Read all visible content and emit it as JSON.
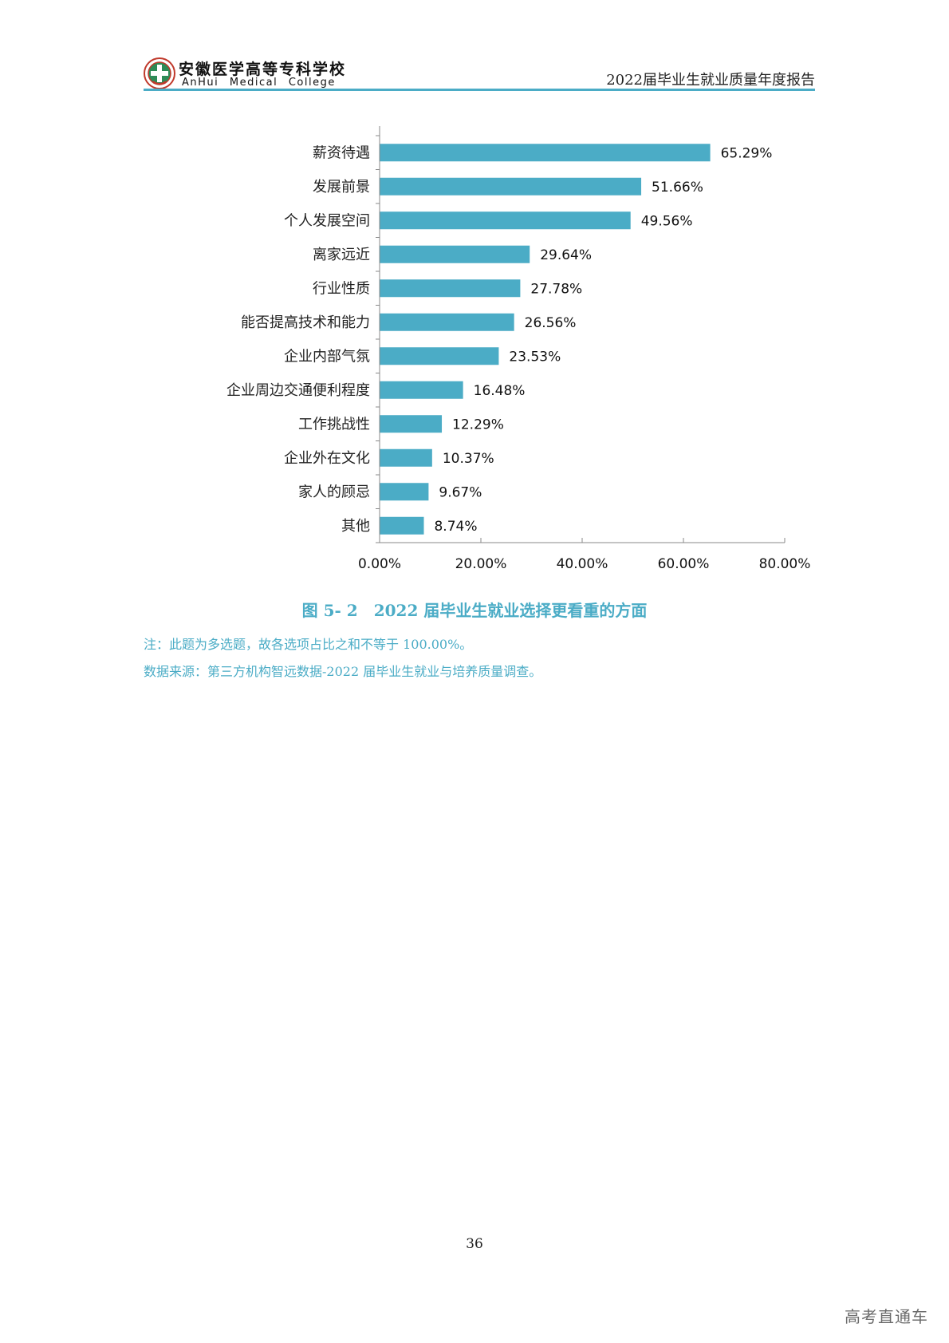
{
  "header": {
    "school_name_cn": "安徽医学高等专科学校",
    "school_name_en": "AnHui Medical College",
    "report_title": "2022届毕业生就业质量年度报告"
  },
  "chart_data": {
    "type": "bar",
    "orientation": "horizontal",
    "categories": [
      "薪资待遇",
      "发展前景",
      "个人发展空间",
      "离家远近",
      "行业性质",
      "能否提高技术和能力",
      "企业内部气氛",
      "企业周边交通便利程度",
      "工作挑战性",
      "企业外在文化",
      "家人的顾忌",
      "其他"
    ],
    "values": [
      65.29,
      51.66,
      49.56,
      29.64,
      27.78,
      26.56,
      23.53,
      16.48,
      12.29,
      10.37,
      9.67,
      8.74
    ],
    "value_labels": [
      "65.29%",
      "51.66%",
      "49.56%",
      "29.64%",
      "27.78%",
      "26.56%",
      "23.53%",
      "16.48%",
      "12.29%",
      "10.37%",
      "9.67%",
      "8.74%"
    ],
    "xlim": [
      0,
      80
    ],
    "xticks": [
      0,
      20,
      40,
      60,
      80
    ],
    "xtick_labels": [
      "0.00%",
      "20.00%",
      "40.00%",
      "60.00%",
      "80.00%"
    ],
    "bar_color": "#4bacc6",
    "grid": false
  },
  "caption": "图 5- 2　2022 届毕业生就业选择更看重的方面",
  "notes": [
    "注：此题为多选题，故各选项占比之和不等于 100.00%。",
    "数据来源：第三方机构智远数据-2022 届毕业生就业与培养质量调查。"
  ],
  "page_number": "36",
  "watermark": "高考直通车",
  "colors": {
    "accent": "#4bacc6",
    "text": "#222222"
  }
}
